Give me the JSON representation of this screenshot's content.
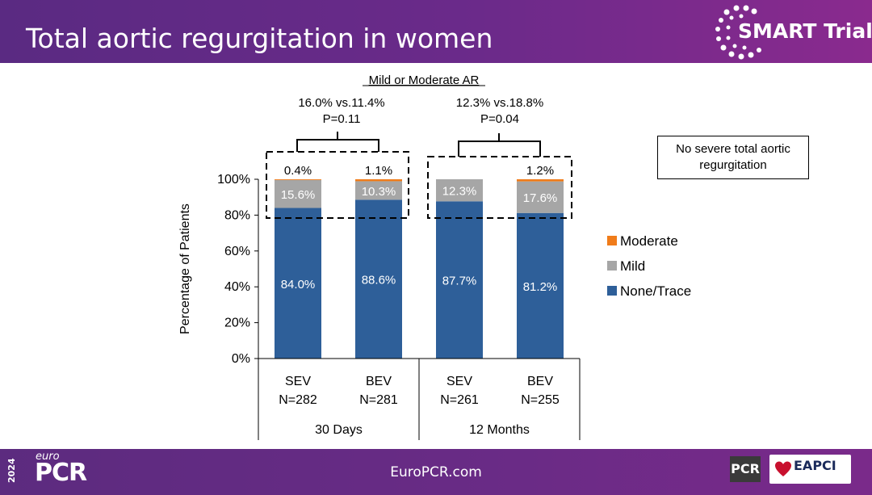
{
  "header": {
    "title": "Total aortic regurgitation in women",
    "brand": "SMART Trial"
  },
  "footer": {
    "url": "EuroPCR.com",
    "euro_year": "2024",
    "euro_small": "euro",
    "euro_logo": "PCR",
    "pcr_logo": "PCR",
    "eapci_logo": "EAPCI"
  },
  "note": "No severe total aortic regurgitation",
  "chart_data": {
    "type": "bar",
    "stacked": true,
    "ylabel": "Percentage of Patients",
    "ylim": [
      0,
      100
    ],
    "yticks": [
      "0%",
      "20%",
      "40%",
      "60%",
      "80%",
      "100%"
    ],
    "groups": [
      "30 Days",
      "12 Months"
    ],
    "categories": [
      {
        "label": "SEV",
        "n": "N=282",
        "group": 0
      },
      {
        "label": "BEV",
        "n": "N=281",
        "group": 0
      },
      {
        "label": "SEV",
        "n": "N=261",
        "group": 1
      },
      {
        "label": "BEV",
        "n": "N=255",
        "group": 1
      }
    ],
    "series": [
      {
        "name": "None/Trace",
        "color": "#2e5f99",
        "values": [
          84.0,
          88.6,
          87.7,
          81.2
        ],
        "labels": [
          "84.0%",
          "88.6%",
          "87.7%",
          "81.2%"
        ]
      },
      {
        "name": "Mild",
        "color": "#a6a6a6",
        "values": [
          15.6,
          10.3,
          12.3,
          17.6
        ],
        "labels": [
          "15.6%",
          "10.3%",
          "12.3%",
          "17.6%"
        ]
      },
      {
        "name": "Moderate",
        "color": "#f07c1a",
        "values": [
          0.4,
          1.1,
          0.0,
          1.2
        ],
        "labels": [
          "0.4%",
          "1.1%",
          "",
          "1.2%"
        ]
      }
    ],
    "legend": [
      "Moderate",
      "Mild",
      "None/Trace"
    ],
    "legend_position": "right",
    "annotation_title": "Mild or Moderate AR",
    "comparisons": [
      {
        "line1": "16.0% vs.11.4%",
        "line2": "P=0.11"
      },
      {
        "line1": "12.3% vs.18.8%",
        "line2": "P=0.04"
      }
    ]
  }
}
